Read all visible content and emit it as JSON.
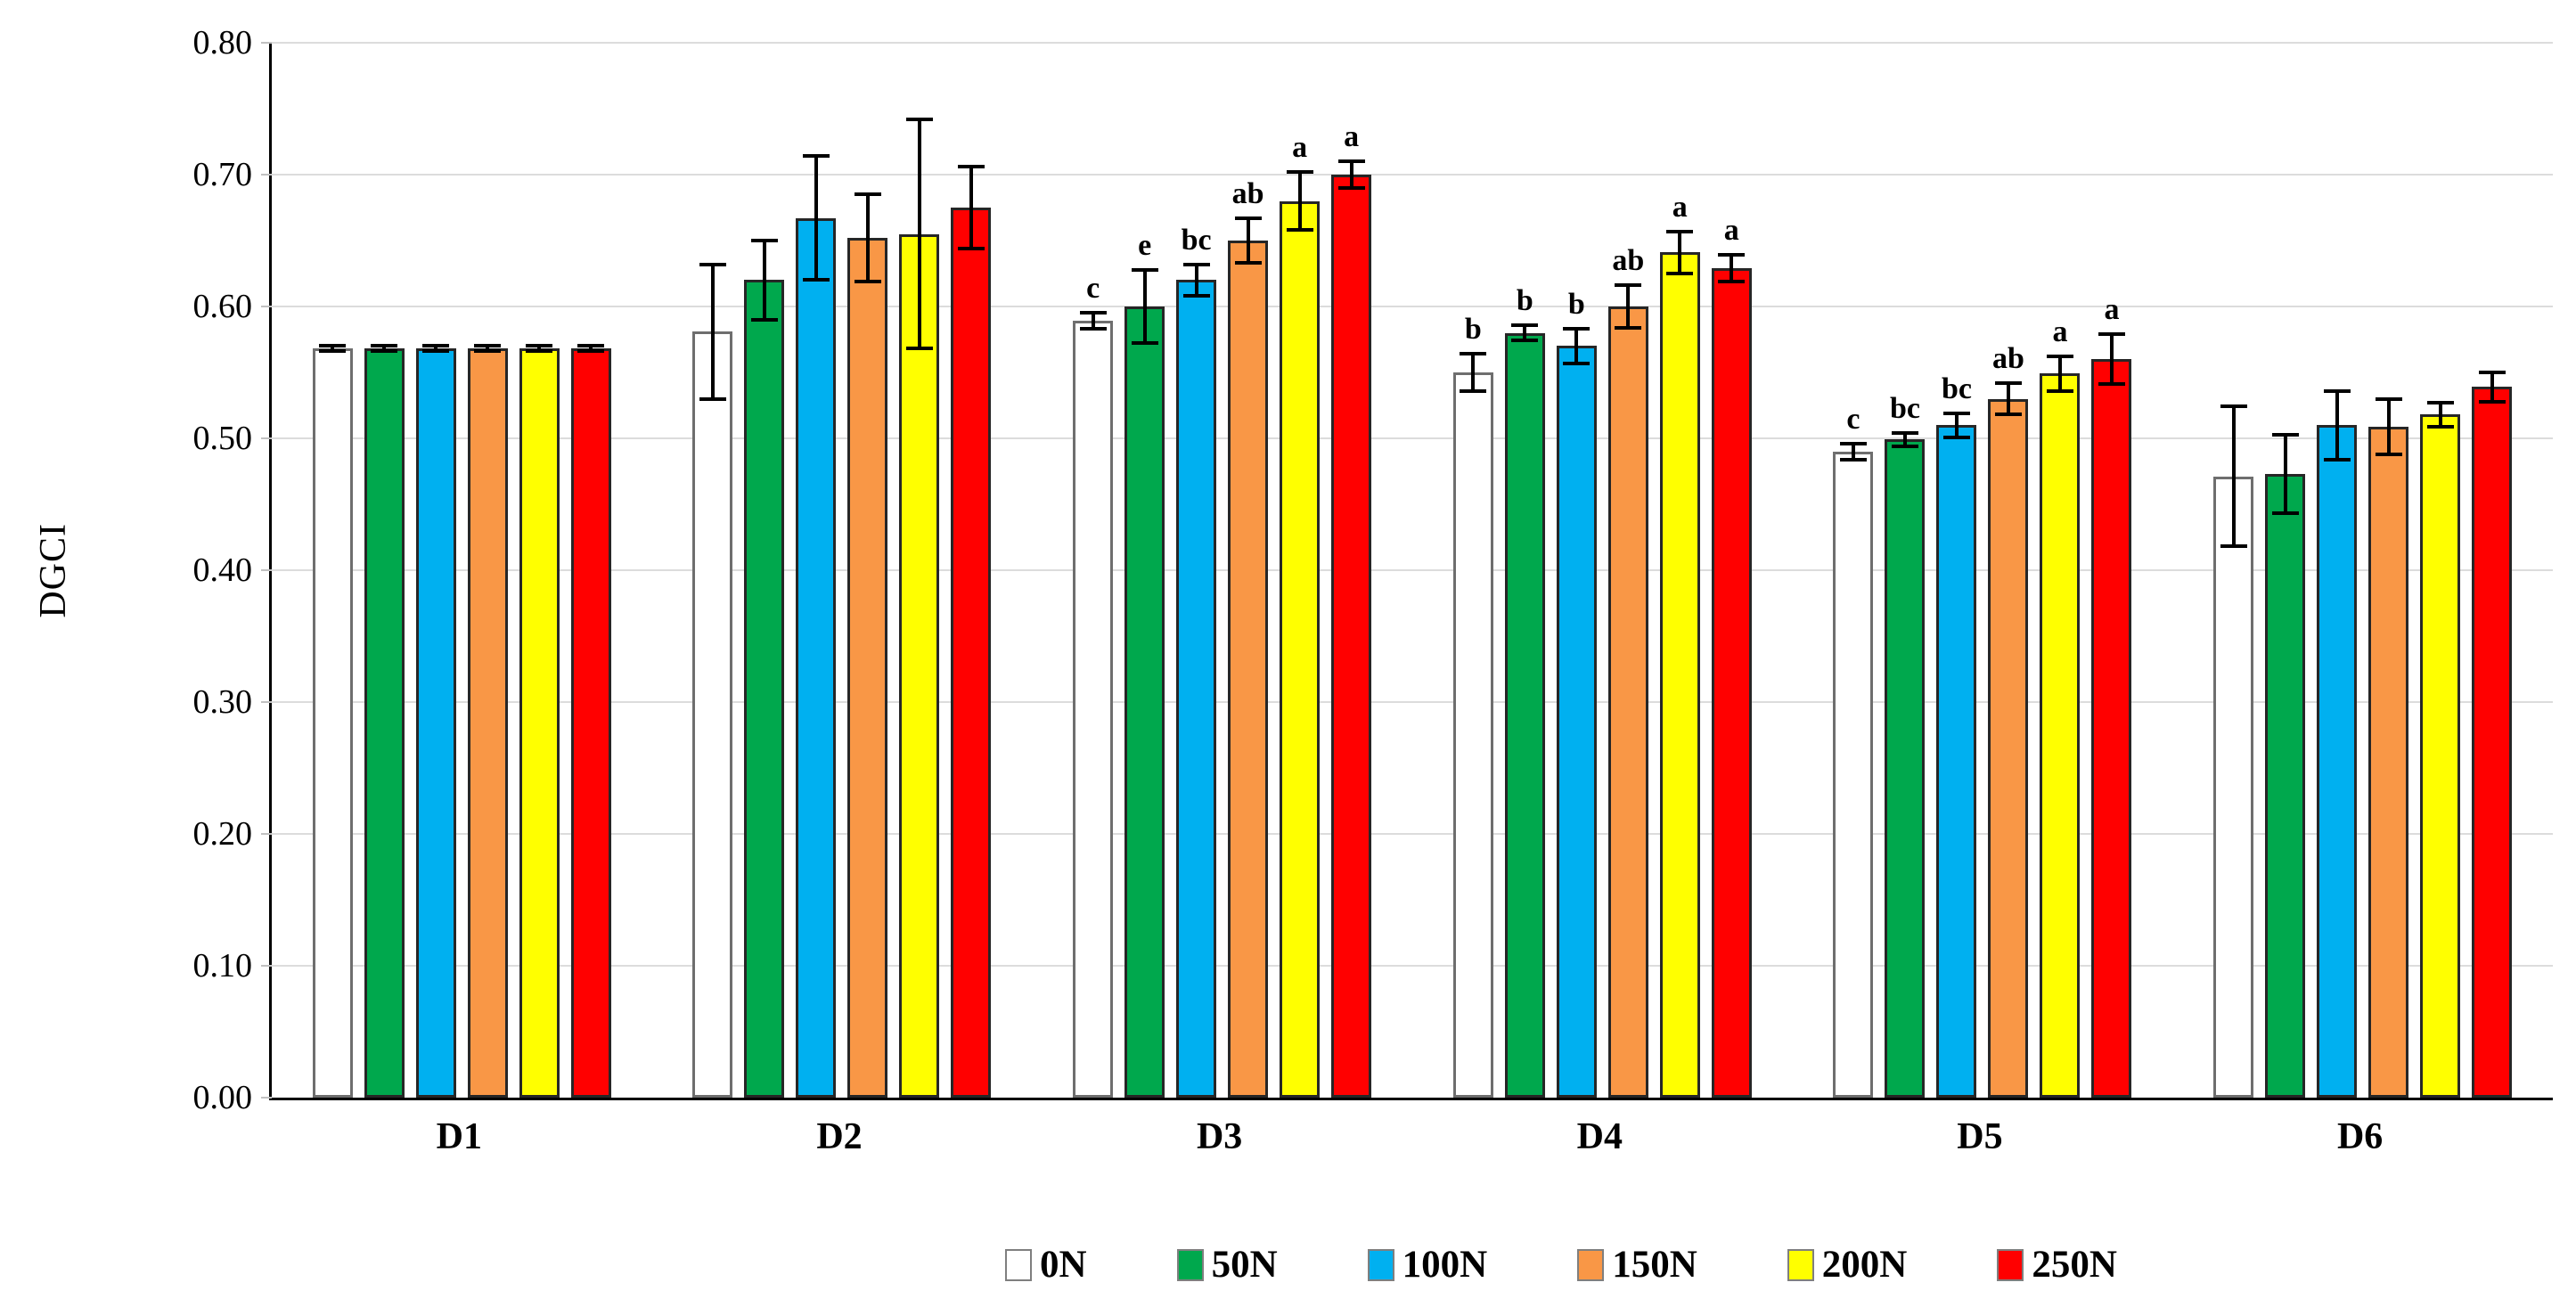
{
  "chart_data": {
    "type": "bar",
    "title": "",
    "ylabel": "DGCI",
    "xlabel": "",
    "ylim": [
      0.0,
      0.8
    ],
    "ytick_step": 0.1,
    "ytick_labels": [
      "0.00",
      "0.10",
      "0.20",
      "0.30",
      "0.40",
      "0.50",
      "0.60",
      "0.70",
      "0.80"
    ],
    "grid": "horizontal",
    "gridline_color": "#DCDCDC",
    "legend_position": "bottom",
    "error_bars": true,
    "categories": [
      "D1",
      "D2",
      "D3",
      "D4",
      "D5",
      "D6"
    ],
    "series": [
      {
        "name": "0N",
        "color": "#FFFFFF",
        "border_color": "#6E6E6E",
        "values": [
          0.568,
          0.581,
          0.589,
          0.55,
          0.49,
          0.471
        ],
        "errors": [
          0.002,
          0.051,
          0.006,
          0.014,
          0.006,
          0.053
        ],
        "letters": [
          "",
          "",
          "c",
          "b",
          "c",
          ""
        ]
      },
      {
        "name": "50N",
        "color": "#00A84D",
        "border_color": "#262626",
        "values": [
          0.568,
          0.62,
          0.6,
          0.58,
          0.499,
          0.473
        ],
        "errors": [
          0.002,
          0.03,
          0.028,
          0.006,
          0.005,
          0.03
        ],
        "letters": [
          "",
          "",
          "e",
          "b",
          "bc",
          ""
        ]
      },
      {
        "name": "100N",
        "color": "#00B0F0",
        "border_color": "#262626",
        "values": [
          0.568,
          0.667,
          0.62,
          0.57,
          0.51,
          0.51
        ],
        "errors": [
          0.002,
          0.047,
          0.012,
          0.013,
          0.009,
          0.026
        ],
        "letters": [
          "",
          "",
          "bc",
          "b",
          "bc",
          ""
        ]
      },
      {
        "name": "150N",
        "color": "#F99746",
        "border_color": "#262626",
        "values": [
          0.568,
          0.652,
          0.65,
          0.6,
          0.53,
          0.509
        ],
        "errors": [
          0.002,
          0.033,
          0.017,
          0.016,
          0.012,
          0.021
        ],
        "letters": [
          "",
          "",
          "ab",
          "ab",
          "ab",
          ""
        ]
      },
      {
        "name": "200N",
        "color": "#FFFF00",
        "border_color": "#262626",
        "values": [
          0.568,
          0.655,
          0.68,
          0.641,
          0.549,
          0.518
        ],
        "errors": [
          0.002,
          0.087,
          0.022,
          0.016,
          0.013,
          0.009
        ],
        "letters": [
          "",
          "",
          "a",
          "a",
          "a",
          ""
        ]
      },
      {
        "name": "250N",
        "color": "#FF0000",
        "border_color": "#262626",
        "values": [
          0.568,
          0.675,
          0.7,
          0.629,
          0.56,
          0.539
        ],
        "errors": [
          0.002,
          0.031,
          0.01,
          0.01,
          0.019,
          0.011
        ],
        "letters": [
          "",
          "",
          "a",
          "a",
          "a",
          ""
        ]
      }
    ]
  }
}
